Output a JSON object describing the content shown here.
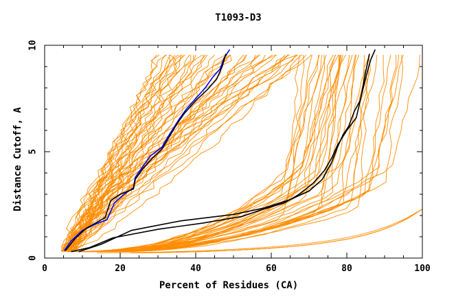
{
  "chart_data": {
    "type": "line",
    "title": "T1093-D3",
    "xlabel": "Percent of Residues (CA)",
    "ylabel": "Distance Cutoff, A",
    "xlim": [
      0,
      100
    ],
    "ylim": [
      0,
      10
    ],
    "x_ticks": [
      "0",
      "20",
      "40",
      "60",
      "80",
      "100"
    ],
    "y_ticks": [
      "0",
      "5",
      "10"
    ],
    "grid": false,
    "legend": "none",
    "colors": {
      "models": "#ff8c00",
      "highlight_black": "#000000",
      "highlight_blue": "#0000ff"
    },
    "series": [
      {
        "color": "#0000ff",
        "x": [
          5.2,
          7,
          10,
          13.5,
          16.5,
          18.5,
          21,
          23.5,
          24,
          26,
          28,
          31,
          33,
          35.5,
          37.5,
          40,
          42.5,
          44.5,
          46.5,
          47.5,
          49
        ],
        "y": [
          0.35,
          0.8,
          1.3,
          1.6,
          1.8,
          2.6,
          3.0,
          3.3,
          3.8,
          4.3,
          4.8,
          5.2,
          5.8,
          6.5,
          7.0,
          7.5,
          8.0,
          8.5,
          8.9,
          9.4,
          9.8
        ]
      },
      {
        "color": "#000000",
        "x": [
          5.5,
          8,
          11,
          14,
          16,
          17.5,
          20,
          23.5,
          24,
          26,
          28.5,
          31,
          33,
          35,
          37,
          40,
          43,
          45.5,
          47,
          48
        ],
        "y": [
          0.35,
          0.9,
          1.4,
          1.7,
          1.9,
          2.7,
          3.0,
          3.25,
          3.7,
          4.2,
          4.7,
          5.1,
          5.7,
          6.3,
          6.8,
          7.4,
          7.9,
          8.4,
          9.0,
          9.6
        ]
      },
      {
        "color": "#000000",
        "x": [
          9,
          15,
          23,
          36,
          50,
          58,
          65,
          70,
          73.5,
          76,
          77.5,
          79,
          80.5,
          82,
          83.5,
          84.5,
          85.5,
          86.3,
          87.5
        ],
        "y": [
          0.3,
          0.65,
          1.3,
          1.75,
          2.05,
          2.35,
          2.75,
          3.15,
          3.7,
          4.5,
          5.2,
          5.8,
          6.2,
          6.9,
          7.4,
          8.1,
          8.8,
          9.3,
          9.8
        ]
      },
      {
        "color": "#000000",
        "x": [
          7,
          12,
          18,
          30,
          42,
          52,
          58,
          63.5,
          67,
          71,
          74,
          76,
          77.5,
          80,
          82.5,
          83.3,
          84,
          84.8,
          86
        ],
        "y": [
          0.3,
          0.5,
          0.95,
          1.35,
          1.65,
          1.95,
          2.3,
          2.6,
          2.95,
          3.5,
          4.1,
          4.7,
          5.3,
          6.0,
          6.6,
          7.2,
          7.8,
          8.6,
          9.6
        ]
      }
    ]
  }
}
